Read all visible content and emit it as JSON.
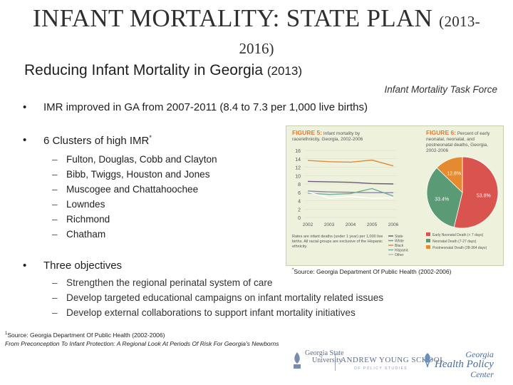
{
  "title": {
    "main": "INFANT MORTALITY: STATE PLAN",
    "year_start": "(2013-",
    "year_end": "2016)"
  },
  "subtitle": {
    "text": "Reducing Infant Mortality in Georgia",
    "year": "(2013)"
  },
  "task_force": "Infant Mortality Task Force",
  "bullets": {
    "b1": "IMR improved in GA from 2007-2011 (8.4 to 7.3 per 1,000 live births)",
    "b2": "6 Clusters of high IMR",
    "b2_sup": "*",
    "b3": "Three objectives",
    "symbol": "•"
  },
  "clusters": [
    "Fulton, Douglas, Cobb and Clayton",
    "Bibb, Twiggs, Houston and Jones",
    "Muscogee and Chattahoochee",
    "Lowndes",
    "Richmond",
    "Chatham"
  ],
  "objectives": [
    "Strengthen the regional perinatal system of care",
    "Develop targeted educational campaigns on infant mortality related issues",
    "Develop external collaborations to support infant mortality initiatives"
  ],
  "dash": "–",
  "source_right": {
    "sup": "*",
    "text": "Source: Georgia Department Of Public Health (2002-2006)"
  },
  "source_bottom": {
    "sup": "1",
    "line1": "Source: Georgia Department Of Public Health (2002-2006)",
    "line2": "From Preconception To Infant Protection: A Regional Look At Periods Of Risk For Georgia's Newborns"
  },
  "figure5": {
    "label": "FIGURE 5:",
    "caption": "Infant mortality by race/ethnicity, Georgia, 2002-2006",
    "note": "Rates are infant deaths (under 1 year) per 1,000 live births. All racial groups are exclusive of the Hispanic ethnicity."
  },
  "figure6": {
    "label": "FIGURE 6:",
    "caption": "Percent of early neonatal, neonatal, and postneonatal deaths, Georgia, 2002-2006",
    "legend": [
      "Early Neonatal Death (< 7 days)",
      "Neonatal Death (7-27 days)",
      "Postneonatal Death (28-364 days)"
    ]
  },
  "chart_data": [
    {
      "type": "line",
      "title": "Infant mortality by race/ethnicity, Georgia, 2002-2006",
      "categories": [
        "2002",
        "2003",
        "2004",
        "2005",
        "2006"
      ],
      "ylim": [
        0,
        16
      ],
      "yticks": [
        0,
        2,
        4,
        6,
        8,
        10,
        12,
        14,
        16
      ],
      "series": [
        {
          "name": "Black",
          "values": [
            13.6,
            13.3,
            13.2,
            13.7,
            12.3
          ],
          "color": "#e08a3a"
        },
        {
          "name": "State",
          "values": [
            8.6,
            8.5,
            8.4,
            8.1,
            8.0
          ],
          "color": "#6b5a7a"
        },
        {
          "name": "White",
          "values": [
            6.3,
            6.1,
            6.0,
            5.9,
            5.9
          ],
          "color": "#8d86a0"
        },
        {
          "name": "Hispanic",
          "values": [
            5.8,
            5.5,
            5.7,
            6.9,
            5.1
          ],
          "color": "#6fb09b"
        },
        {
          "name": "Other",
          "values": [
            6.1,
            4.6,
            5.0,
            4.6,
            4.7
          ],
          "color": "#ffffff"
        }
      ],
      "legend": [
        "State",
        "White",
        "Black",
        "Hispanic",
        "Other"
      ]
    },
    {
      "type": "pie",
      "title": "Percent of early neonatal, neonatal, and postneonatal deaths, Georgia, 2002-2006",
      "labels": [
        "Early Neonatal Death",
        "Neonatal Death",
        "Postneonatal Death"
      ],
      "values": [
        53.8,
        33.4,
        12.8
      ],
      "value_labels": [
        "53.8%",
        "33.4%",
        "12.8%"
      ],
      "colors": [
        "#d9534f",
        "#5a9a74",
        "#e58a2e"
      ]
    }
  ],
  "logos": {
    "gsu_line1": "Georgia State",
    "gsu_line2": "University",
    "ays": "ANDREW YOUNG SCHOOL",
    "ays_sub": "OF POLICY STUDIES",
    "ghpc_l1": "Georgia",
    "ghpc_l2": "Health Policy",
    "ghpc_l3": "Center"
  }
}
